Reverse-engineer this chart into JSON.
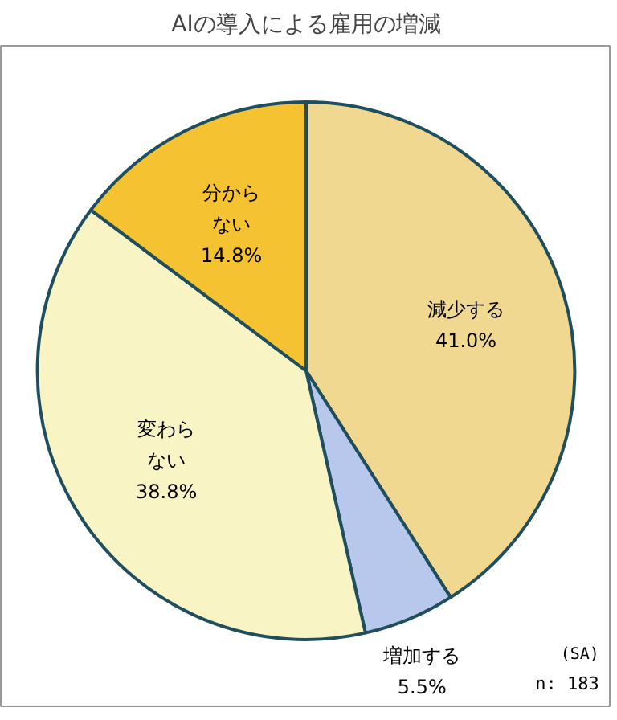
{
  "chart_data": {
    "type": "pie",
    "title": "AIの導入による雇用の増減",
    "categories": [
      "減少する",
      "増加する",
      "変わらない",
      "分からない"
    ],
    "values": [
      41.0,
      5.5,
      38.8,
      14.8
    ],
    "colors": [
      "#f0d890",
      "#b8c8ec",
      "#f8f4c4",
      "#f5c232"
    ],
    "value_labels": [
      "41.0%",
      "5.5%",
      "38.8%",
      "14.8%"
    ],
    "annotations": [
      "(SA)",
      "n: 183"
    ]
  }
}
